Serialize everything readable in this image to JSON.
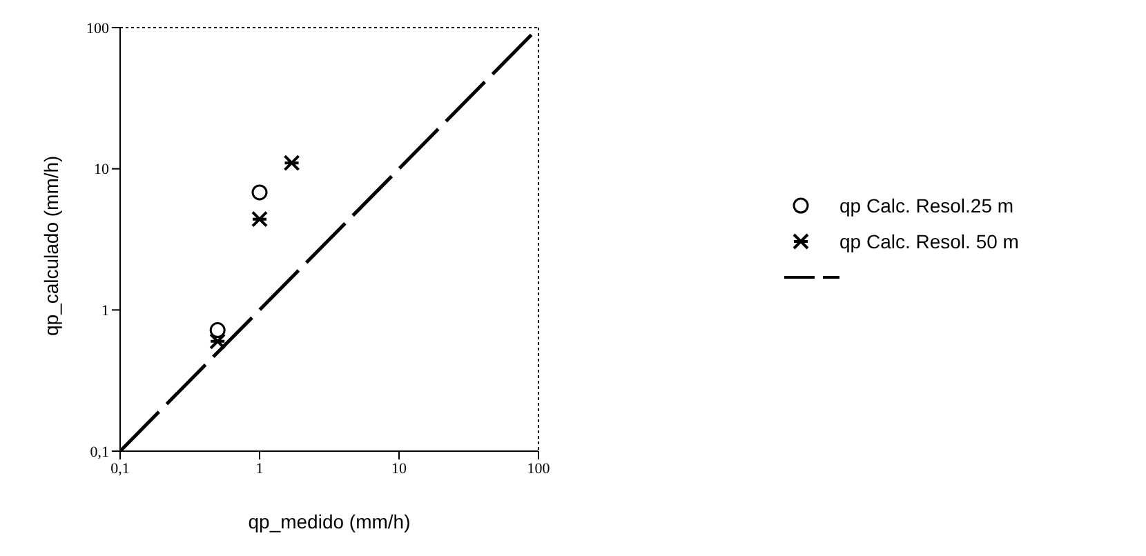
{
  "chart_data": {
    "type": "scatter",
    "xlabel": "qp_medido (mm/h)",
    "ylabel": "qp_calculado (mm/h)",
    "log": "xy",
    "legend": "right",
    "xlim": [
      0.1,
      100
    ],
    "ylim": [
      0.1,
      100
    ],
    "xticks": [
      {
        "value": 0.1,
        "label": "0,1"
      },
      1,
      10,
      100
    ],
    "yticks": [
      {
        "value": 0.1,
        "label": "0,1"
      },
      1,
      10,
      100
    ],
    "series": [
      {
        "name": "qp Calc. Resol.25 m",
        "color": "#000000",
        "marker": "circle",
        "x": [
          0.5,
          1
        ],
        "values": [
          0.72,
          6.8
        ]
      },
      {
        "name": "qp Calc. Resol. 50 m",
        "color": "#000000",
        "marker": "cross",
        "x": [
          0.5,
          1,
          1.7
        ],
        "values": [
          0.6,
          4.4,
          11
        ]
      },
      {
        "type": "line",
        "color": "#000000",
        "line_style": "dashed",
        "marker": "none",
        "x": [
          0.1,
          100
        ],
        "values": [
          0.1,
          100
        ]
      }
    ]
  }
}
